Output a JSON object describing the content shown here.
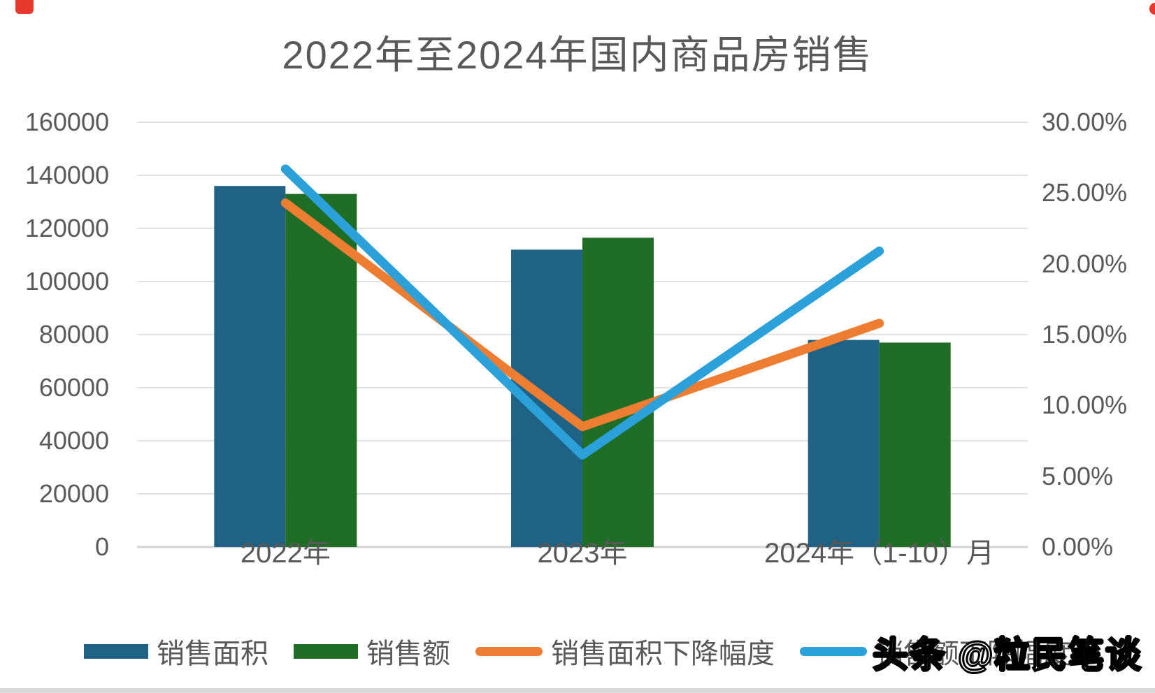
{
  "title": {
    "text": "2022年至2024年国内商品房销售"
  },
  "watermark": {
    "text": "头条 @粒民笔谈"
  },
  "colors": {
    "bar_blue": "#1e6285",
    "bar_green": "#206d26",
    "line_orange": "#ed7d31",
    "line_cyan": "#2ba0d9",
    "text": "#595959",
    "gridline": "#e2e2e2",
    "baseline": "#d3d3d3",
    "bottom_strip": "#d9d9d9",
    "red_mark": "#e8372c"
  },
  "chart_data": {
    "type": "bar",
    "subtype": "combo-bar-line-dual-axis",
    "title": "2022年至2024年国内商品房销售",
    "grid": true,
    "legend_position": "bottom",
    "categories": [
      "2022年",
      "2023年",
      "2024年（1-10）月"
    ],
    "bar_series": [
      {
        "name": "销售面积",
        "axis": "left",
        "color_key": "bar_blue",
        "values": [
          136000,
          112000,
          78000
        ]
      },
      {
        "name": "销售额",
        "axis": "left",
        "color_key": "bar_green",
        "values": [
          133000,
          116500,
          77000
        ]
      }
    ],
    "line_series": [
      {
        "name": "销售面积下降幅度",
        "axis": "right",
        "color_key": "line_orange",
        "values_pct": [
          24.3,
          8.5,
          15.8
        ]
      },
      {
        "name": "销售额下降幅度",
        "axis": "right",
        "color_key": "line_cyan",
        "values_pct": [
          26.7,
          6.5,
          20.9
        ]
      }
    ],
    "left_axis": {
      "min": 0,
      "max": 160000,
      "step": 20000,
      "tick_labels": [
        "160000",
        "140000",
        "120000",
        "100000",
        "80000",
        "60000",
        "40000",
        "20000",
        "0"
      ]
    },
    "right_axis": {
      "min": 0,
      "max": 30,
      "step": 5,
      "tick_labels": [
        "30.00%",
        "25.00%",
        "20.00%",
        "15.00%",
        "10.00%",
        "5.00%",
        "0.00%"
      ]
    }
  }
}
